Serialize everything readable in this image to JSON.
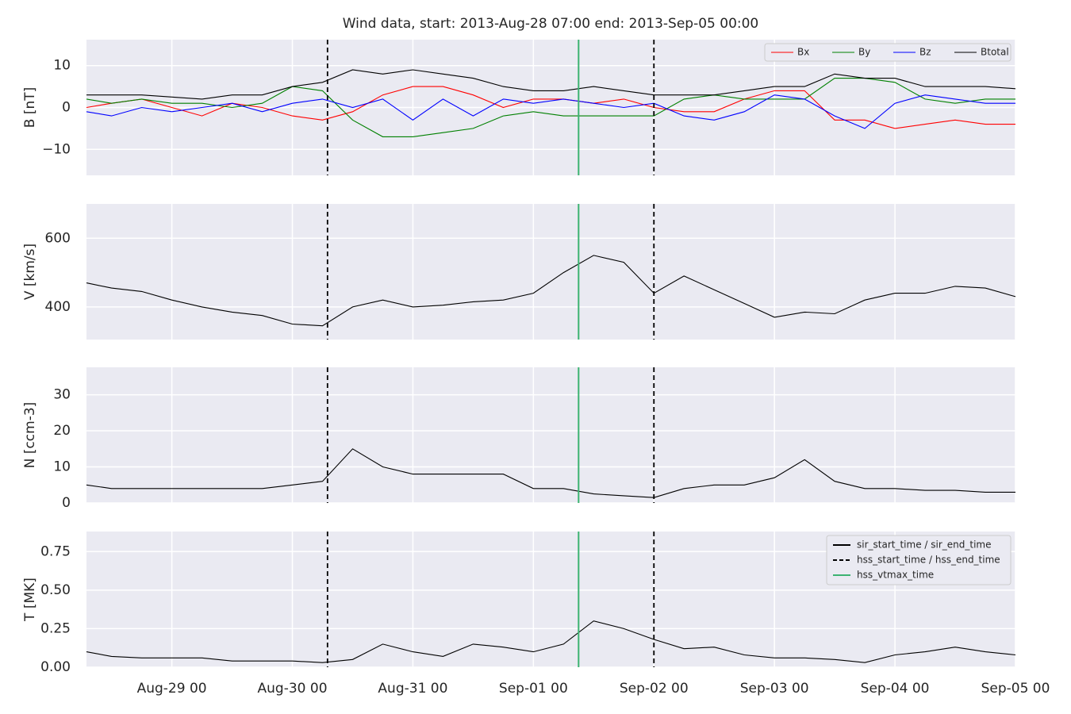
{
  "chart_data": [
    {
      "type": "line",
      "title": "Wind data, start: 2013-Aug-28 07:00  end: 2013-Sep-05 00:00",
      "ylabel": "B [nT]",
      "x": [
        "2013-08-28 07:00",
        "2013-08-28 12:00",
        "2013-08-28 18:00",
        "2013-08-29 00:00",
        "2013-08-29 06:00",
        "2013-08-29 12:00",
        "2013-08-29 18:00",
        "2013-08-30 00:00",
        "2013-08-30 06:00",
        "2013-08-30 12:00",
        "2013-08-30 18:00",
        "2013-08-31 00:00",
        "2013-08-31 06:00",
        "2013-08-31 12:00",
        "2013-08-31 18:00",
        "2013-09-01 00:00",
        "2013-09-01 06:00",
        "2013-09-01 12:00",
        "2013-09-01 18:00",
        "2013-09-02 00:00",
        "2013-09-02 06:00",
        "2013-09-02 12:00",
        "2013-09-02 18:00",
        "2013-09-03 00:00",
        "2013-09-03 06:00",
        "2013-09-03 12:00",
        "2013-09-03 18:00",
        "2013-09-04 00:00",
        "2013-09-04 06:00",
        "2013-09-04 12:00",
        "2013-09-04 18:00",
        "2013-09-05 00:00"
      ],
      "xlim": [
        "2013-08-28 07:00",
        "2013-09-05 00:00"
      ],
      "ylim": [
        -16.2,
        16.2
      ],
      "yticks": [
        {
          "value": -10,
          "label": "−10"
        },
        0,
        10
      ],
      "grid": true,
      "legend": "upper right",
      "series": [
        {
          "name": "Bx",
          "color": "#ff0000",
          "values": [
            0,
            1,
            2,
            0,
            -2,
            1,
            0,
            -2,
            -3,
            -1,
            3,
            5,
            5,
            3,
            0,
            2,
            2,
            1,
            2,
            0,
            -1,
            -1,
            2,
            4,
            4,
            -3,
            -3,
            -5,
            -4,
            -3,
            -4,
            -4
          ]
        },
        {
          "name": "By",
          "color": "#008000",
          "values": [
            2,
            1,
            2,
            1,
            1,
            0,
            1,
            5,
            4,
            -3,
            -7,
            -7,
            -6,
            -5,
            -2,
            -1,
            -2,
            -2,
            -2,
            -2,
            2,
            3,
            2,
            2,
            2,
            7,
            7,
            6,
            2,
            1,
            2,
            2
          ]
        },
        {
          "name": "Bz",
          "color": "#0000ff",
          "values": [
            -1,
            -2,
            0,
            -1,
            0,
            1,
            -1,
            1,
            2,
            0,
            2,
            -3,
            2,
            -2,
            2,
            1,
            2,
            1,
            0,
            1,
            -2,
            -3,
            -1,
            3,
            2,
            -2,
            -5,
            1,
            3,
            2,
            1,
            1
          ]
        },
        {
          "name": "Btotal",
          "color": "#000000",
          "values": [
            3,
            3,
            3,
            2.5,
            2,
            3,
            3,
            5,
            6,
            9,
            8,
            9,
            8,
            7,
            5,
            4,
            4,
            5,
            4,
            3,
            3,
            3,
            4,
            5,
            5,
            8,
            7,
            7,
            5,
            5,
            5,
            4.5
          ]
        }
      ]
    },
    {
      "type": "line",
      "ylabel": "V [km/s]",
      "x": [
        "2013-08-28 07:00",
        "2013-08-28 12:00",
        "2013-08-28 18:00",
        "2013-08-29 00:00",
        "2013-08-29 06:00",
        "2013-08-29 12:00",
        "2013-08-29 18:00",
        "2013-08-30 00:00",
        "2013-08-30 06:00",
        "2013-08-30 12:00",
        "2013-08-30 18:00",
        "2013-08-31 00:00",
        "2013-08-31 06:00",
        "2013-08-31 12:00",
        "2013-08-31 18:00",
        "2013-09-01 00:00",
        "2013-09-01 06:00",
        "2013-09-01 12:00",
        "2013-09-01 18:00",
        "2013-09-02 00:00",
        "2013-09-02 06:00",
        "2013-09-02 12:00",
        "2013-09-02 18:00",
        "2013-09-03 00:00",
        "2013-09-03 06:00",
        "2013-09-03 12:00",
        "2013-09-03 18:00",
        "2013-09-04 00:00",
        "2013-09-04 06:00",
        "2013-09-04 12:00",
        "2013-09-04 18:00",
        "2013-09-05 00:00"
      ],
      "xlim": [
        "2013-08-28 07:00",
        "2013-09-05 00:00"
      ],
      "ylim": [
        305,
        700
      ],
      "yticks": [
        400,
        600
      ],
      "grid": true,
      "series": [
        {
          "color": "#000000",
          "values": [
            470,
            455,
            445,
            420,
            400,
            385,
            375,
            350,
            345,
            400,
            420,
            400,
            405,
            415,
            420,
            440,
            500,
            550,
            530,
            440,
            490,
            450,
            410,
            370,
            385,
            380,
            420,
            440,
            440,
            460,
            455,
            430
          ]
        }
      ]
    },
    {
      "type": "line",
      "ylabel": "N [ccm-3]",
      "x": [
        "2013-08-28 07:00",
        "2013-08-28 12:00",
        "2013-08-28 18:00",
        "2013-08-29 00:00",
        "2013-08-29 06:00",
        "2013-08-29 12:00",
        "2013-08-29 18:00",
        "2013-08-30 00:00",
        "2013-08-30 06:00",
        "2013-08-30 12:00",
        "2013-08-30 18:00",
        "2013-08-31 00:00",
        "2013-08-31 06:00",
        "2013-08-31 12:00",
        "2013-08-31 18:00",
        "2013-09-01 00:00",
        "2013-09-01 06:00",
        "2013-09-01 12:00",
        "2013-09-01 18:00",
        "2013-09-02 00:00",
        "2013-09-02 06:00",
        "2013-09-02 12:00",
        "2013-09-02 18:00",
        "2013-09-03 00:00",
        "2013-09-03 06:00",
        "2013-09-03 12:00",
        "2013-09-03 18:00",
        "2013-09-04 00:00",
        "2013-09-04 06:00",
        "2013-09-04 12:00",
        "2013-09-04 18:00",
        "2013-09-05 00:00"
      ],
      "xlim": [
        "2013-08-28 07:00",
        "2013-09-05 00:00"
      ],
      "ylim": [
        0,
        37.6
      ],
      "yticks": [
        0,
        10,
        20,
        30
      ],
      "grid": true,
      "series": [
        {
          "color": "#000000",
          "values": [
            5,
            4,
            4,
            4,
            4,
            4,
            4,
            5,
            6,
            15,
            10,
            8,
            8,
            8,
            8,
            4,
            4,
            2.5,
            2,
            1.5,
            4,
            5,
            5,
            7,
            12,
            6,
            4,
            4,
            3.5,
            3.5,
            3,
            3
          ]
        }
      ]
    },
    {
      "type": "line",
      "ylabel": "T [MK]",
      "x": [
        "2013-08-28 07:00",
        "2013-08-28 12:00",
        "2013-08-28 18:00",
        "2013-08-29 00:00",
        "2013-08-29 06:00",
        "2013-08-29 12:00",
        "2013-08-29 18:00",
        "2013-08-30 00:00",
        "2013-08-30 06:00",
        "2013-08-30 12:00",
        "2013-08-30 18:00",
        "2013-08-31 00:00",
        "2013-08-31 06:00",
        "2013-08-31 12:00",
        "2013-08-31 18:00",
        "2013-09-01 00:00",
        "2013-09-01 06:00",
        "2013-09-01 12:00",
        "2013-09-01 18:00",
        "2013-09-02 00:00",
        "2013-09-02 06:00",
        "2013-09-02 12:00",
        "2013-09-02 18:00",
        "2013-09-03 00:00",
        "2013-09-03 06:00",
        "2013-09-03 12:00",
        "2013-09-03 18:00",
        "2013-09-04 00:00",
        "2013-09-04 06:00",
        "2013-09-04 12:00",
        "2013-09-04 18:00",
        "2013-09-05 00:00"
      ],
      "xlim": [
        "2013-08-28 07:00",
        "2013-09-05 00:00"
      ],
      "ylim": [
        0,
        0.88
      ],
      "yticks": [
        {
          "value": 0,
          "label": "0.00"
        },
        {
          "value": 0.25,
          "label": "0.25"
        },
        {
          "value": 0.5,
          "label": "0.50"
        },
        {
          "value": 0.75,
          "label": "0.75"
        }
      ],
      "grid": true,
      "legend": "upper right",
      "xticks": [
        {
          "value": "2013-08-29 00:00",
          "label": "Aug-29 00"
        },
        {
          "value": "2013-08-30 00:00",
          "label": "Aug-30 00"
        },
        {
          "value": "2013-08-31 00:00",
          "label": "Aug-31 00"
        },
        {
          "value": "2013-09-01 00:00",
          "label": "Sep-01 00"
        },
        {
          "value": "2013-09-02 00:00",
          "label": "Sep-02 00"
        },
        {
          "value": "2013-09-03 00:00",
          "label": "Sep-03 00"
        },
        {
          "value": "2013-09-04 00:00",
          "label": "Sep-04 00"
        },
        {
          "value": "2013-09-05 00:00",
          "label": "Sep-05 00"
        }
      ],
      "series": [
        {
          "color": "#000000",
          "values": [
            0.1,
            0.07,
            0.06,
            0.06,
            0.06,
            0.04,
            0.04,
            0.04,
            0.03,
            0.05,
            0.15,
            0.1,
            0.07,
            0.15,
            0.13,
            0.1,
            0.15,
            0.3,
            0.25,
            0.18,
            0.12,
            0.13,
            0.08,
            0.06,
            0.06,
            0.05,
            0.03,
            0.08,
            0.1,
            0.13,
            0.1,
            0.08
          ]
        }
      ],
      "events": [
        {
          "name": "sir_start_time / sir_end_time",
          "color": "#000000",
          "style": "solid"
        },
        {
          "name": "hss_start_time / hss_end_time",
          "color": "#000000",
          "style": "dashed",
          "times": [
            "2013-08-30 07:00",
            "2013-09-02 00:00"
          ]
        },
        {
          "name": "hss_vtmax_time",
          "color": "#3cb371",
          "style": "solid",
          "times": [
            "2013-09-01 09:00"
          ]
        }
      ]
    }
  ]
}
